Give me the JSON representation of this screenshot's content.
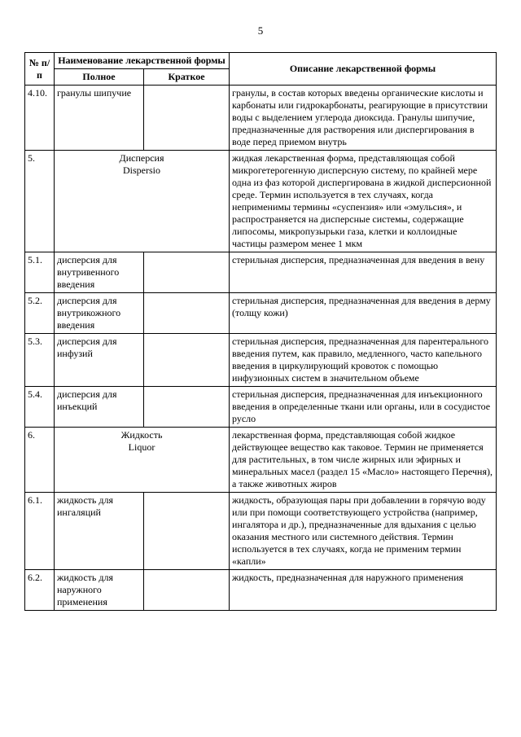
{
  "page_number": "5",
  "headers": {
    "num": "№ п/п",
    "group": "Наименование лекарственной формы",
    "full": "Полное",
    "short": "Краткое",
    "desc": "Описание лекарственной формы"
  },
  "rows": [
    {
      "num": "4.10.",
      "full": "гранулы шипучие",
      "short": "",
      "desc": "гранулы, в состав которых введены органические кислоты и карбонаты или гидрокарбонаты, реагирующие в присутствии воды с выделением углерода диоксида. Гранулы шипучие, предназначенные для растворения или диспергирования в воде перед приемом внутрь"
    },
    {
      "num": "5.",
      "merged_ru": "Дисперсия",
      "merged_lat": "Dispersio",
      "desc": "жидкая лекарственная форма, представляющая собой микрогетерогенную дисперсную систему, по крайней мере одна из фаз которой диспергирована в жидкой дисперсионной среде. Термин используется в тех случаях, когда неприменимы термины «суспензия» или «эмульсия», и распространяется на дисперсные системы, содержащие липосомы, микропузырьки газа, клетки и коллоидные частицы размером менее 1 мкм"
    },
    {
      "num": "5.1.",
      "full": "дисперсия для внутривенного введения",
      "short": "",
      "desc": "стерильная дисперсия, предназначенная для введения в вену"
    },
    {
      "num": "5.2.",
      "full": "дисперсия для внутрикожного введения",
      "short": "",
      "desc": "стерильная дисперсия, предназначенная для введения в дерму (толщу кожи)"
    },
    {
      "num": "5.3.",
      "full": "дисперсия для инфузий",
      "short": "",
      "desc": "стерильная дисперсия, предназначенная для парентерального введения путем, как правило, медленного, часто капельного введения в циркулирующий кровоток с помощью инфузионных систем в значительном объеме"
    },
    {
      "num": "5.4.",
      "full": "дисперсия для инъекций",
      "short": "",
      "desc": "стерильная дисперсия, предназначенная для инъекционного введения в определенные ткани или органы, или в сосудистое русло"
    },
    {
      "num": "6.",
      "merged_ru": "Жидкость",
      "merged_lat": "Liquor",
      "desc": "лекарственная форма, представляющая собой жидкое действующее вещество как таковое. Термин не применяется для растительных, в том числе жирных или эфирных и минеральных масел (раздел 15 «Масло» настоящего Перечня), а также животных жиров"
    },
    {
      "num": "6.1.",
      "full": "жидкость для ингаляций",
      "short": "",
      "desc": "жидкость, образующая пары при добавлении в горячую воду или при помощи соответствующего устройства (например, ингалятора и др.), предназначенные для вдыхания с целью оказания местного или системного действия. Термин используется в тех случаях, когда не применим термин «капли»"
    },
    {
      "num": "6.2.",
      "full": "жидкость для наружного применения",
      "short": "",
      "desc": "жидкость, предназначенная для наружного применения"
    }
  ]
}
